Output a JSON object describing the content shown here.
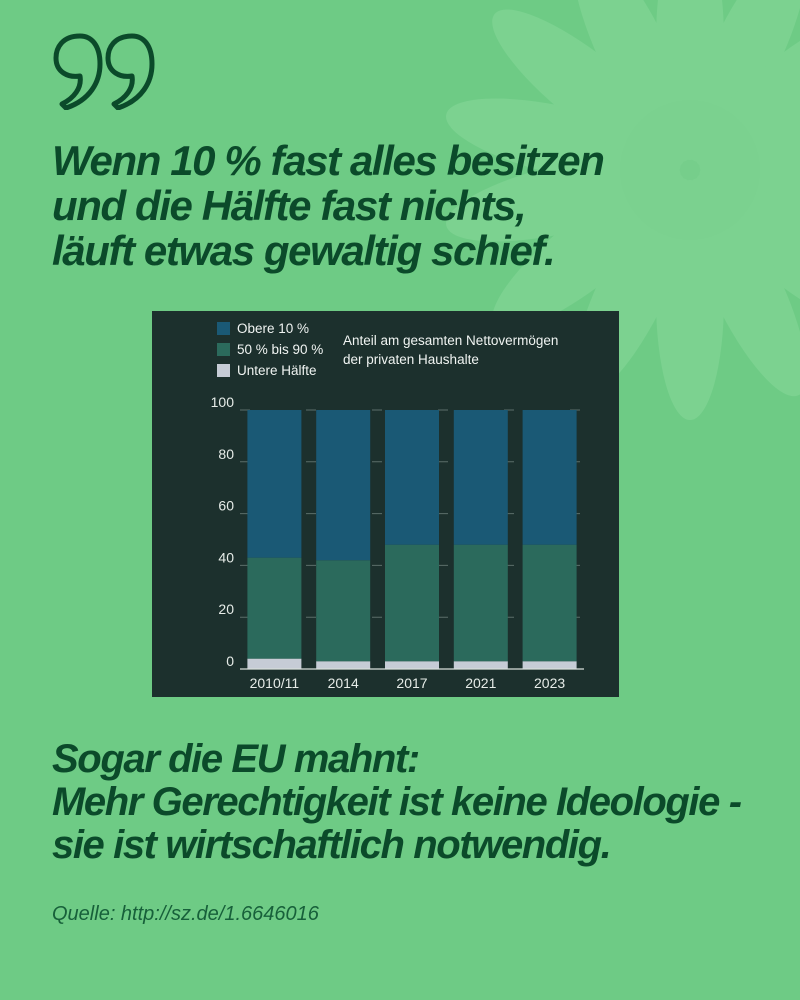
{
  "headline": {
    "line1": "Wenn 10 % fast alles besitzen",
    "line2": "und die Hälfte fast nichts,",
    "line3": "läuft etwas gewaltig schief."
  },
  "statement": {
    "line1": "Sogar die EU mahnt:",
    "line2": "Mehr Gerechtigkeit ist keine Ideologie -",
    "line3": "sie ist wirtschaftlich notwendig."
  },
  "source": "Quelle: http://sz.de/1.6646016",
  "colors": {
    "background": "#6ecb85",
    "text": "#0b4a2a",
    "chart_bg": "#1c302d",
    "top10": "#1a5975",
    "mid": "#2b6a5c",
    "bottom": "#c6ccd6"
  },
  "chart_data": {
    "type": "bar",
    "stacked": true,
    "title": "Anteil am gesamten Nettovermögen der privaten Haushalte",
    "title_lines": [
      "Anteil am gesamten Nettovermögen",
      "der privaten Haushalte"
    ],
    "categories": [
      "2010/11",
      "2014",
      "2017",
      "2021",
      "2023"
    ],
    "series": [
      {
        "name": "Untere Hälfte",
        "color": "#c6ccd6",
        "values": [
          4,
          3,
          3,
          3,
          3
        ]
      },
      {
        "name": "50 % bis 90 %",
        "color": "#2b6a5c",
        "values": [
          39,
          39,
          45,
          45,
          45
        ]
      },
      {
        "name": "Obere 10 %",
        "color": "#1a5975",
        "values": [
          57,
          58,
          52,
          52,
          52
        ]
      }
    ],
    "legend_order": [
      "Obere 10 %",
      "50 % bis 90 %",
      "Untere Hälfte"
    ],
    "yticks": [
      0,
      20,
      40,
      60,
      80,
      100
    ],
    "ylim": [
      0,
      100
    ],
    "grid": true,
    "legend_position": "top-left"
  }
}
